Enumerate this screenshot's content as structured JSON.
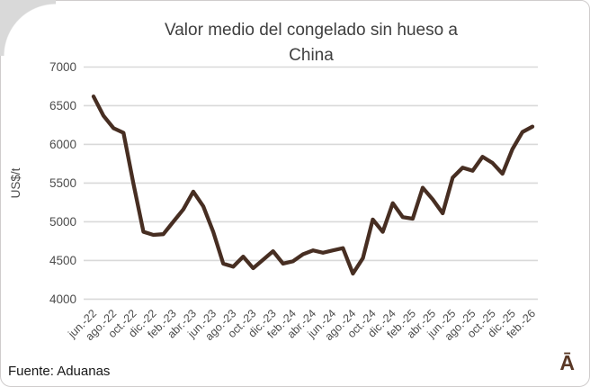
{
  "chart": {
    "title_line1": "Valor medio del congelado sin hueso a",
    "title_line2": "China",
    "ylabel": "US$/t"
  },
  "footer": {
    "source": "Fuente: Aduanas",
    "logo": "Ā"
  },
  "colors": {
    "line": "#472e22",
    "gridline": "#d9d9d9",
    "title_text": "#3f3f3f",
    "tick_text": "#4c4c4c",
    "footer_text": "#171717",
    "logo_brown": "#5a3826"
  },
  "chart_data": {
    "type": "line",
    "title": "Valor medio del congelado sin hueso a China",
    "xlabel": "",
    "ylabel": "US$/t",
    "ylim": [
      4000,
      7000
    ],
    "ytick_step": 500,
    "ytick_labels": [
      "4000",
      "4500",
      "5000",
      "5500",
      "6000",
      "6500",
      "7000"
    ],
    "grid": true,
    "legend": false,
    "x_labels_shown_every": 2,
    "x": [
      "jun.-22",
      "jul.-22",
      "ago.-22",
      "sep.-22",
      "oct.-22",
      "nov.-22",
      "dic.-22",
      "ene.-23",
      "feb.-23",
      "mar.-23",
      "abr.-23",
      "may.-23",
      "jun.-23",
      "jul.-23",
      "ago.-23",
      "sep.-23",
      "oct.-23",
      "nov.-23",
      "dic.-23",
      "ene.-24",
      "feb.-24",
      "mar.-24",
      "abr.-24",
      "may.-24",
      "jun.-24",
      "jul.-24",
      "ago.-24",
      "sep.-24",
      "oct.-24",
      "nov.-24",
      "dic.-24",
      "ene.-25",
      "feb.-25",
      "mar.-25",
      "abr.-25",
      "may.-25",
      "jun.-25",
      "jul.-25",
      "ago.-25",
      "sep.-25",
      "oct.-25",
      "nov.-25",
      "dic.-25",
      "ene.-26",
      "feb.-26"
    ],
    "values": [
      6620,
      6370,
      6210,
      6150,
      5490,
      4870,
      4830,
      4840,
      5000,
      5160,
      5390,
      5200,
      4870,
      4460,
      4420,
      4550,
      4400,
      4510,
      4620,
      4460,
      4490,
      4580,
      4630,
      4600,
      4630,
      4660,
      4330,
      4530,
      5030,
      4870,
      5240,
      5060,
      5040,
      5440,
      5290,
      5110,
      5570,
      5700,
      5660,
      5840,
      5760,
      5620,
      5940,
      6160,
      6230
    ]
  }
}
